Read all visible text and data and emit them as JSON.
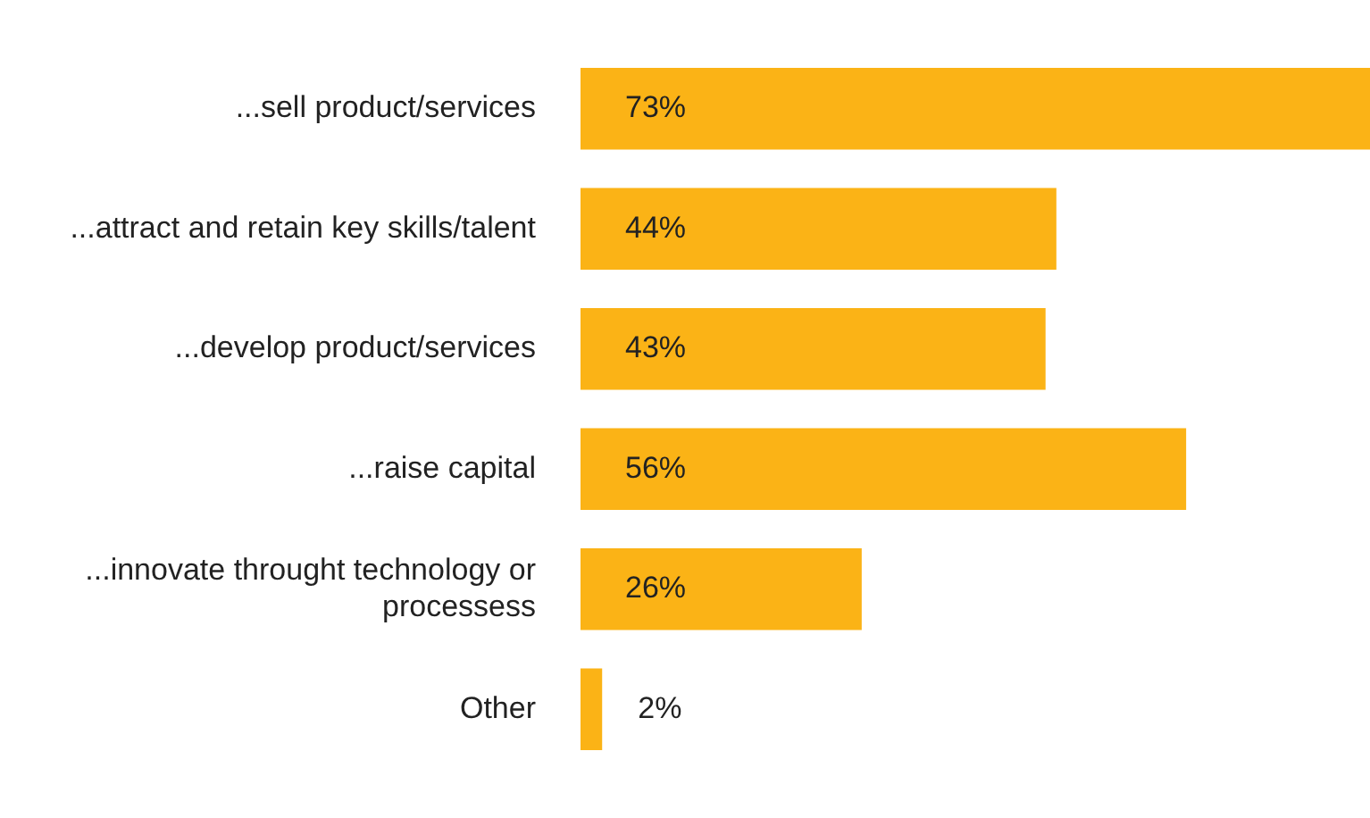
{
  "chart_data": {
    "type": "bar",
    "orientation": "horizontal",
    "categories": [
      "...sell product/services",
      "...attract and retain key skills/talent",
      "...develop product/services",
      "...raise capital",
      "...innovate throught technology or processess",
      "Other"
    ],
    "values": [
      73,
      44,
      43,
      56,
      26,
      2
    ],
    "value_labels": [
      "73%",
      "44%",
      "43%",
      "56%",
      "26%",
      "2%"
    ],
    "color": "#fbb316",
    "tick_labels": "y",
    "legend": false
  }
}
